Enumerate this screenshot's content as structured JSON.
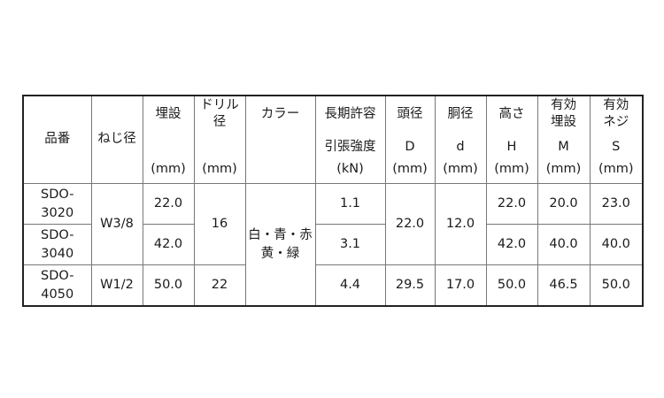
{
  "headers": {
    "part_no": "品番",
    "thread": "ねじ径",
    "embed": {
      "label": "埋設",
      "unit": "(mm)"
    },
    "drill": {
      "line1": "ドリル",
      "line2": "径",
      "unit": "(mm)"
    },
    "color": "カラー",
    "tensile": {
      "line1": "長期許容",
      "line2": "引張強度",
      "unit": "(kN)"
    },
    "head_dia": {
      "label": "頭径",
      "symbol": "D",
      "unit": "(mm)"
    },
    "body_dia": {
      "label": "胴径",
      "symbol": "d",
      "unit": "(mm)"
    },
    "height": {
      "label": "高さ",
      "symbol": "H",
      "unit": "(mm)"
    },
    "eff_embed": {
      "line1": "有効",
      "line2": "埋設",
      "symbol": "M",
      "unit": "(mm)"
    },
    "eff_thread": {
      "line1": "有効",
      "line2": "ネジ",
      "symbol": "S",
      "unit": "(mm)"
    }
  },
  "rows": [
    {
      "part_a": "SDO-",
      "part_b": "3020",
      "thread": "W3/8",
      "embed": "22.0",
      "drill": "16",
      "color_a": "白・青・赤",
      "color_b": "黄・緑",
      "tensile": "1.1",
      "head_dia": "22.0",
      "body_dia": "12.0",
      "height": "22.0",
      "eff_embed": "20.0",
      "eff_thread": "23.0"
    },
    {
      "part_a": "SDO-",
      "part_b": "3040",
      "embed": "42.0",
      "tensile": "3.1",
      "height": "42.0",
      "eff_embed": "40.0",
      "eff_thread": "40.0"
    },
    {
      "part_a": "SDO-",
      "part_b": "4050",
      "thread": "W1/2",
      "embed": "50.0",
      "drill": "22",
      "tensile": "4.4",
      "head_dia": "29.5",
      "body_dia": "17.0",
      "height": "50.0",
      "eff_embed": "46.5",
      "eff_thread": "50.0"
    }
  ]
}
